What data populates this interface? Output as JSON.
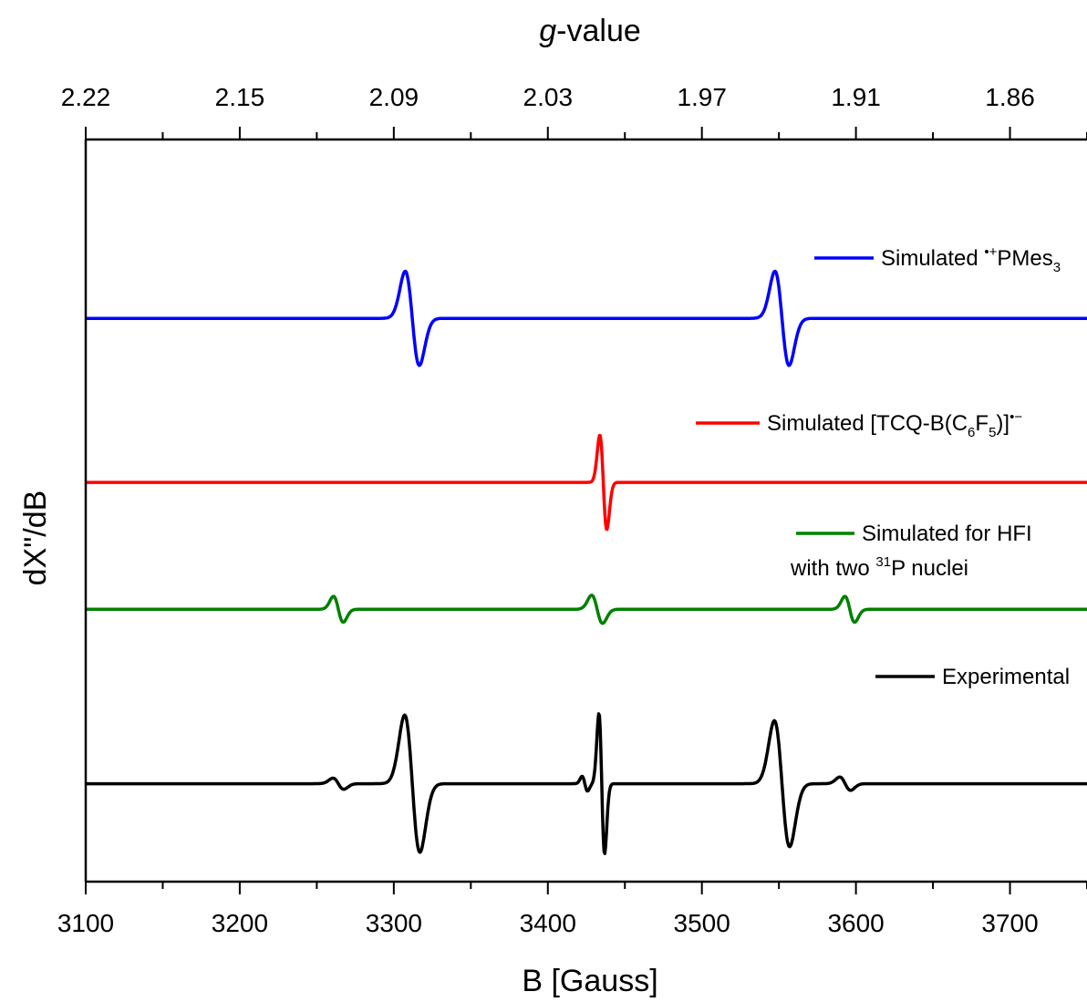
{
  "chart_data": {
    "type": "line",
    "x_axis": {
      "label": "B [Gauss]",
      "range": [
        3100,
        3750
      ],
      "ticks": [
        3100,
        3200,
        3300,
        3400,
        3500,
        3600,
        3700
      ]
    },
    "top_axis": {
      "label_italic": "g",
      "label_rest": "-value",
      "tick_labels": [
        "2.22",
        "2.15",
        "2.09",
        "2.03",
        "1.97",
        "1.91",
        "1.86"
      ]
    },
    "y_axis": {
      "label": "dX\"/dB",
      "range": [
        -1,
        1
      ],
      "ticks": []
    },
    "legend": {
      "placement": "right",
      "entries": [
        {
          "parts": [
            {
              "t": "Simulated "
            },
            {
              "t": "•+",
              "sup": true
            },
            {
              "t": "PMes"
            },
            {
              "t": "3",
              "sub": true
            }
          ]
        },
        {
          "parts": [
            {
              "t": "Simulated [TCQ-B(C"
            },
            {
              "t": "6",
              "sub": true
            },
            {
              "t": "F"
            },
            {
              "t": "5",
              "sub": true
            },
            {
              "t": ")]"
            },
            {
              "t": "•−",
              "sup": true
            }
          ]
        },
        {
          "parts": [
            {
              "t": "Simulated for HFI"
            }
          ]
        },
        {
          "parts": [
            {
              "t": "with two "
            },
            {
              "t": "31",
              "sup": true
            },
            {
              "t": "P nuclei"
            }
          ]
        },
        {
          "parts": [
            {
              "t": "Experimental"
            }
          ]
        }
      ]
    },
    "series": [
      {
        "name": "Simulated •+PMes3",
        "color": "#0000ff",
        "baseline": 0.518,
        "lines": [
          {
            "center": 3312,
            "width": 6.5,
            "amp": 0.127
          },
          {
            "center": 3552,
            "width": 6.5,
            "amp": 0.127
          }
        ]
      },
      {
        "name": "Simulated [TCQ-B(C6F5)]•−",
        "color": "#ff0000",
        "baseline": 0.076,
        "lines": [
          {
            "center": 3436,
            "width": 3.2,
            "amp": 0.128
          }
        ]
      },
      {
        "name": "Simulated for HFI with two 31P nuclei",
        "color": "#008000",
        "baseline": -0.266,
        "lines": [
          {
            "center": 3264,
            "width": 4.5,
            "amp": 0.035
          },
          {
            "center": 3432,
            "width": 5.0,
            "amp": 0.038
          },
          {
            "center": 3596,
            "width": 4.5,
            "amp": 0.035
          }
        ]
      },
      {
        "name": "Experimental",
        "color": "#000000",
        "baseline": -0.736,
        "lines": [
          {
            "center": 3264,
            "width": 5,
            "amp": 0.015
          },
          {
            "center": 3312,
            "width": 7,
            "amp": 0.185
          },
          {
            "center": 3424,
            "width": 2.5,
            "amp": 0.02
          },
          {
            "center": 3435,
            "width": 2.6,
            "amp": 0.19
          },
          {
            "center": 3552,
            "width": 7,
            "amp": 0.17
          },
          {
            "center": 3593,
            "width": 5,
            "amp": 0.018
          }
        ]
      }
    ],
    "grid": false
  }
}
